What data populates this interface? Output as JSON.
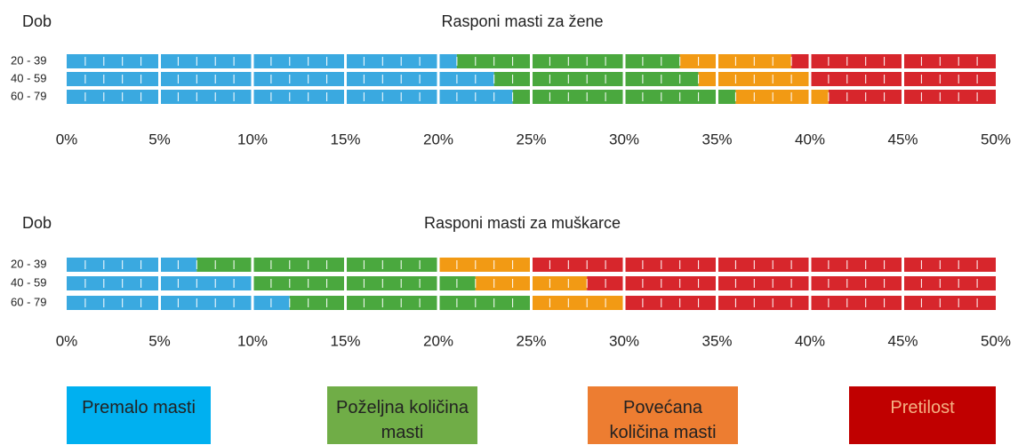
{
  "chart_data": [
    {
      "type": "bar",
      "orientation": "horizontal",
      "stacked": true,
      "title": "Rasponi masti za žene",
      "y_label": "Dob",
      "categories": [
        "20 - 39",
        "40 - 59",
        "60 - 79"
      ],
      "series": [
        {
          "color": "#3aa9e0",
          "values": [
            21,
            23,
            24
          ]
        },
        {
          "color": "#4aa83e",
          "values": [
            12,
            11,
            12
          ]
        },
        {
          "color": "#f29a14",
          "values": [
            6,
            6,
            5
          ]
        },
        {
          "color": "#d7262c",
          "values": [
            11,
            10,
            9
          ]
        }
      ],
      "xlim": [
        0,
        50
      ],
      "xticks": [
        {
          "value": 0,
          "label": "0%"
        },
        {
          "value": 5,
          "label": "5%"
        },
        {
          "value": 10,
          "label": "10%"
        },
        {
          "value": 15,
          "label": "15%"
        },
        {
          "value": 20,
          "label": "20%"
        },
        {
          "value": 25,
          "label": "25%"
        },
        {
          "value": 30,
          "label": "30%"
        },
        {
          "value": 35,
          "label": "35%"
        },
        {
          "value": 40,
          "label": "40%"
        },
        {
          "value": 45,
          "label": "45%"
        },
        {
          "value": 50,
          "label": "50%"
        }
      ]
    },
    {
      "type": "bar",
      "orientation": "horizontal",
      "stacked": true,
      "title": "Rasponi masti za muškarce",
      "y_label": "Dob",
      "categories": [
        "20 - 39",
        "40 - 59",
        "60 - 79"
      ],
      "series": [
        {
          "color": "#3aa9e0",
          "values": [
            7,
            10,
            12
          ]
        },
        {
          "color": "#4aa83e",
          "values": [
            13,
            12,
            13
          ]
        },
        {
          "color": "#f29a14",
          "values": [
            5,
            6,
            5
          ]
        },
        {
          "color": "#d7262c",
          "values": [
            25,
            22,
            20
          ]
        }
      ],
      "xlim": [
        0,
        50
      ],
      "xticks": [
        {
          "value": 0,
          "label": "0%"
        },
        {
          "value": 5,
          "label": "5%"
        },
        {
          "value": 10,
          "label": "10%"
        },
        {
          "value": 15,
          "label": "15%"
        },
        {
          "value": 20,
          "label": "20%"
        },
        {
          "value": 25,
          "label": "25%"
        },
        {
          "value": 30,
          "label": "30%"
        },
        {
          "value": 35,
          "label": "35%"
        },
        {
          "value": 40,
          "label": "40%"
        },
        {
          "value": 45,
          "label": "45%"
        },
        {
          "value": 50,
          "label": "50%"
        }
      ]
    }
  ],
  "legend": [
    {
      "label": "Premalo masti",
      "color": "#00b0f0"
    },
    {
      "label": "Poželjna količina masti",
      "color": "#70ad47"
    },
    {
      "label": "Povećana količina masti",
      "color": "#ed7d31"
    },
    {
      "label": "Pretilost",
      "color": "#c00000"
    }
  ]
}
